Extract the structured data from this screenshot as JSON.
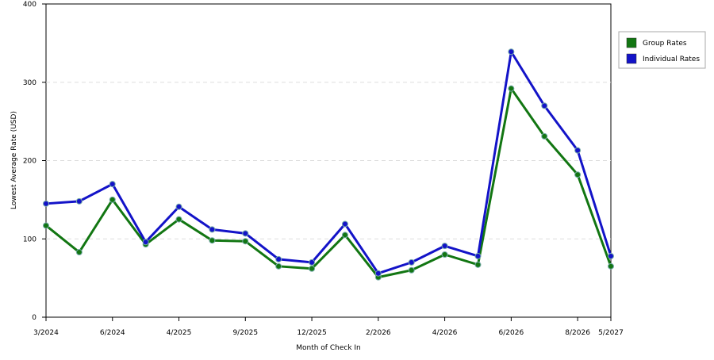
{
  "chart_data": {
    "type": "line",
    "x_label": "Month of Check In",
    "y_label": "Lowest Average Rate (USD)",
    "categories": [
      "3/2024",
      null,
      "6/2024",
      null,
      "4/2025",
      null,
      "9/2025",
      null,
      "12/2025",
      null,
      "2/2026",
      null,
      "4/2026",
      null,
      "6/2026",
      null,
      "8/2026",
      "5/2027"
    ],
    "series": [
      {
        "name": "Group Rates",
        "color": "#127612",
        "values": [
          117,
          83,
          150,
          93,
          125,
          98,
          97,
          65,
          62,
          105,
          51,
          60,
          80,
          67,
          292,
          231,
          182,
          65
        ]
      },
      {
        "name": "Individual Rates",
        "color": "#1313c8",
        "values": [
          145,
          148,
          170,
          96,
          141,
          112,
          107,
          74,
          70,
          119,
          56,
          70,
          91,
          78,
          339,
          270,
          213,
          78
        ]
      }
    ],
    "ylim": [
      0,
      400
    ],
    "yticks": [
      0,
      100,
      200,
      300,
      400
    ],
    "grid": true,
    "legend": "right"
  }
}
